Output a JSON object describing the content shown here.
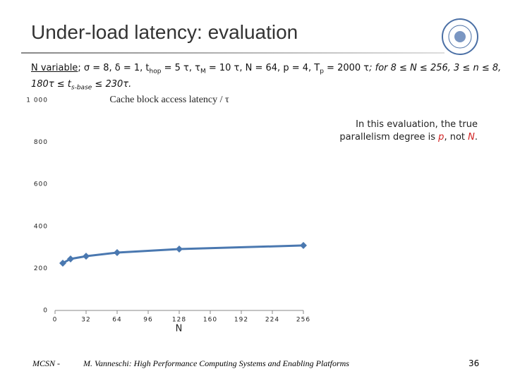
{
  "slide_title": "Under-load latency: evaluation",
  "params_line1": [
    "N variable",
    "; σ = 8, δ = 1, t",
    "hop",
    " = 5 τ, τ",
    "M",
    " = 10 τ, N = 64, p = 4, T",
    "p",
    " = 2000 τ",
    "; for 8 ≤ N ≤ 256, 3 ≤ n ≤ 8,"
  ],
  "params_line2": [
    "180τ ≤ t",
    "s-base",
    " ≤ 230τ."
  ],
  "note": [
    "In this evaluation, the true parallelism degree is ",
    "p",
    ", not ",
    "N",
    "."
  ],
  "footer": {
    "left": "MCSN  -",
    "center": "M. Vanneschi: High Performance Computing Systems and Enabling Platforms",
    "page": "36"
  },
  "chart_data": {
    "type": "line",
    "title": "Cache block access latency / τ",
    "x_label": "N",
    "x": [
      8,
      16,
      32,
      64,
      128,
      256
    ],
    "values": [
      225,
      245,
      258,
      275,
      292,
      309
    ],
    "color": "#4a78b0",
    "xlim": [
      0,
      256
    ],
    "xticks": [
      0,
      32,
      64,
      96,
      128,
      160,
      192,
      224,
      256
    ],
    "ylim": [
      0,
      1000
    ],
    "yticks": [
      0,
      200,
      400,
      600,
      800,
      {
        "value": 1000,
        "label": "1 000"
      }
    ],
    "grid": false
  }
}
